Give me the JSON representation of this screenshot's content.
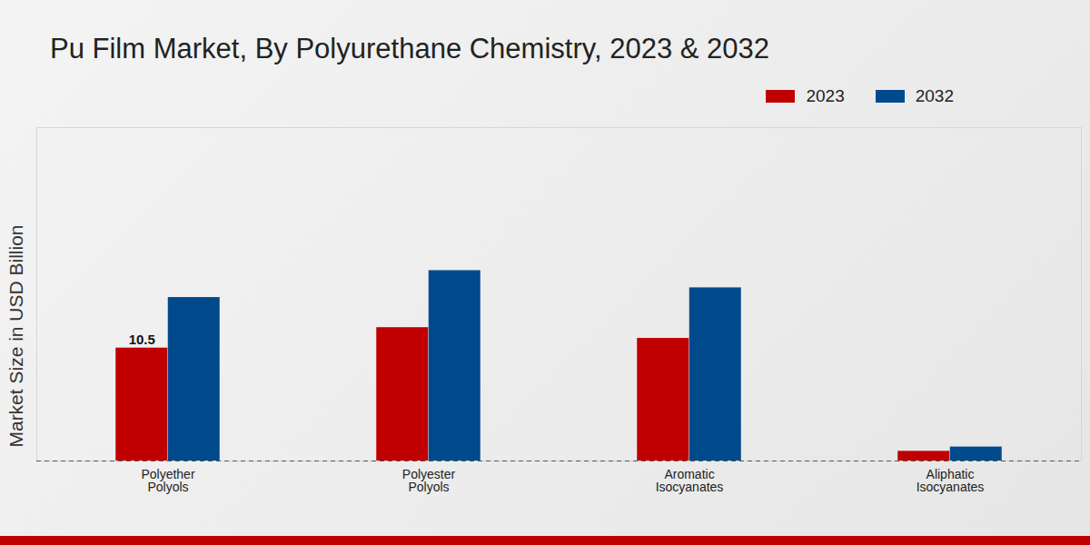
{
  "chart_data": {
    "type": "bar",
    "title": "Pu Film Market, By Polyurethane Chemistry, 2023 & 2032",
    "y_label": "Market Size in USD Billion",
    "categories": [
      "Polyether Polyols",
      "Polyester Polyols",
      "Aromatic Isocyanates",
      "Aliphatic Isocyanates"
    ],
    "series": [
      {
        "name": "2023",
        "color": "#c00000",
        "values": [
          10.5,
          12.4,
          11.4,
          0.9
        ],
        "value_labels": [
          "10.5",
          null,
          null,
          null
        ]
      },
      {
        "name": "2032",
        "color": "#004a8c",
        "values": [
          15.2,
          17.7,
          16.1,
          1.3
        ]
      }
    ],
    "ylim": [
      0,
      31
    ],
    "tick_labels": "x",
    "grid": false,
    "legend": "top-right"
  }
}
